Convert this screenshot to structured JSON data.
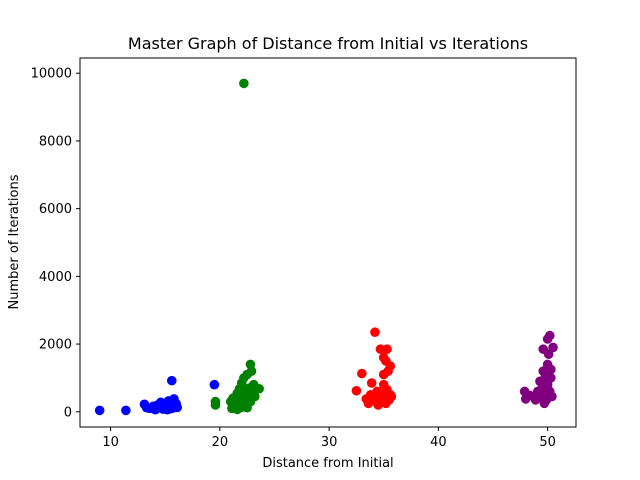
{
  "chart_data": {
    "type": "scatter",
    "title": "Master Graph of Distance from Initial vs Iterations",
    "xlabel": "Distance from Initial",
    "ylabel": "Number of Iterations",
    "xlim": [
      7.2,
      52.6
    ],
    "ylim": [
      -450,
      10450
    ],
    "xticks": [
      10,
      20,
      30,
      40,
      50
    ],
    "yticks": [
      0,
      2000,
      4000,
      6000,
      8000,
      10000
    ],
    "grid": false,
    "legend": "none",
    "series": [
      {
        "color": "#0000ff",
        "points": [
          [
            9.0,
            40
          ],
          [
            11.4,
            40
          ],
          [
            13.1,
            220
          ],
          [
            13.3,
            120
          ],
          [
            13.6,
            100
          ],
          [
            13.9,
            160
          ],
          [
            14.1,
            60
          ],
          [
            14.3,
            200
          ],
          [
            14.5,
            120
          ],
          [
            14.6,
            280
          ],
          [
            14.8,
            80
          ],
          [
            14.9,
            160
          ],
          [
            15.0,
            100
          ],
          [
            15.1,
            240
          ],
          [
            15.2,
            60
          ],
          [
            15.3,
            320
          ],
          [
            15.4,
            140
          ],
          [
            15.5,
            90
          ],
          [
            15.6,
            200
          ],
          [
            15.6,
            920
          ],
          [
            15.7,
            110
          ],
          [
            15.8,
            380
          ],
          [
            15.9,
            180
          ],
          [
            16.0,
            240
          ],
          [
            16.1,
            130
          ],
          [
            19.5,
            800
          ]
        ]
      },
      {
        "color": "#008000",
        "points": [
          [
            19.6,
            200
          ],
          [
            19.6,
            300
          ],
          [
            21.0,
            300
          ],
          [
            21.1,
            100
          ],
          [
            21.2,
            400
          ],
          [
            21.3,
            150
          ],
          [
            21.4,
            250
          ],
          [
            21.5,
            350
          ],
          [
            21.6,
            70
          ],
          [
            21.6,
            550
          ],
          [
            21.7,
            200
          ],
          [
            21.8,
            680
          ],
          [
            21.9,
            120
          ],
          [
            22.0,
            300
          ],
          [
            22.0,
            850
          ],
          [
            22.1,
            450
          ],
          [
            22.1,
            180
          ],
          [
            22.2,
            9700
          ],
          [
            22.2,
            1000
          ],
          [
            22.3,
            250
          ],
          [
            22.3,
            600
          ],
          [
            22.4,
            380
          ],
          [
            22.5,
            120
          ],
          [
            22.5,
            1100
          ],
          [
            22.6,
            500
          ],
          [
            22.7,
            700
          ],
          [
            22.8,
            1400
          ],
          [
            22.8,
            300
          ],
          [
            22.9,
            1200
          ],
          [
            23.0,
            600
          ],
          [
            23.1,
            800
          ],
          [
            23.2,
            450
          ],
          [
            23.6,
            680
          ]
        ]
      },
      {
        "color": "#ff0000",
        "points": [
          [
            32.5,
            620
          ],
          [
            33.0,
            1130
          ],
          [
            33.4,
            380
          ],
          [
            33.6,
            250
          ],
          [
            33.8,
            500
          ],
          [
            33.9,
            850
          ],
          [
            34.1,
            320
          ],
          [
            34.2,
            2350
          ],
          [
            34.3,
            450
          ],
          [
            34.4,
            600
          ],
          [
            34.5,
            200
          ],
          [
            34.6,
            350
          ],
          [
            34.7,
            1850
          ],
          [
            34.8,
            520
          ],
          [
            34.9,
            300
          ],
          [
            35.0,
            1600
          ],
          [
            35.0,
            800
          ],
          [
            35.0,
            1100
          ],
          [
            35.1,
            400
          ],
          [
            35.2,
            1500
          ],
          [
            35.2,
            250
          ],
          [
            35.3,
            1850
          ],
          [
            35.3,
            650
          ],
          [
            35.4,
            1200
          ],
          [
            35.5,
            350
          ],
          [
            35.6,
            500
          ],
          [
            35.6,
            1350
          ],
          [
            35.7,
            450
          ]
        ]
      },
      {
        "color": "#800080",
        "points": [
          [
            47.9,
            600
          ],
          [
            48.0,
            380
          ],
          [
            48.4,
            480
          ],
          [
            48.9,
            350
          ],
          [
            49.1,
            600
          ],
          [
            49.3,
            900
          ],
          [
            49.4,
            450
          ],
          [
            49.5,
            700
          ],
          [
            49.6,
            1200
          ],
          [
            49.6,
            1850
          ],
          [
            49.7,
            250
          ],
          [
            49.8,
            550
          ],
          [
            49.8,
            1050
          ],
          [
            49.9,
            350
          ],
          [
            50.0,
            800
          ],
          [
            50.0,
            2150
          ],
          [
            50.0,
            1400
          ],
          [
            50.1,
            1700
          ],
          [
            50.2,
            600
          ],
          [
            50.2,
            2250
          ],
          [
            50.3,
            1000
          ],
          [
            50.3,
            1250
          ],
          [
            50.4,
            450
          ],
          [
            50.5,
            1900
          ]
        ]
      }
    ]
  }
}
